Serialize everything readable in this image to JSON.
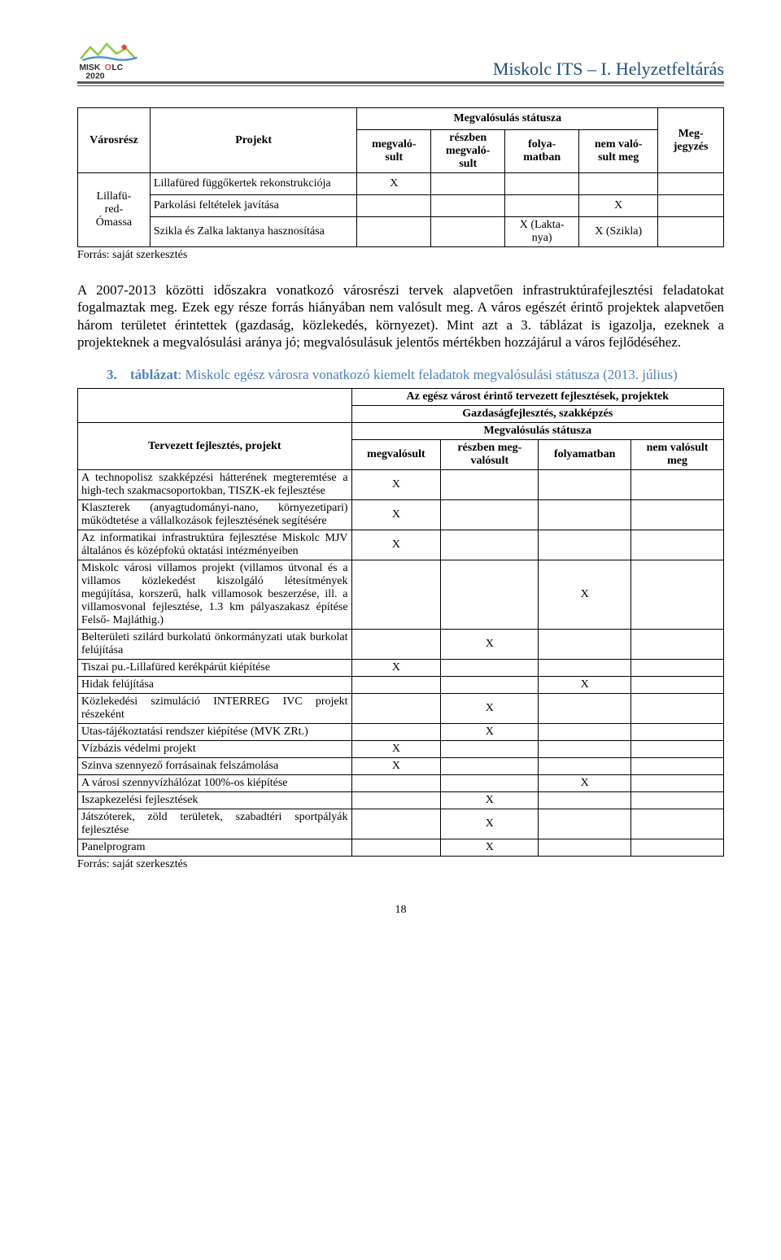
{
  "header": {
    "title": "Miskolc ITS – I. Helyzetfeltárás",
    "logo_top": "MISK",
    "logo_o": "O",
    "logo_end": "LC",
    "logo_year": "2020"
  },
  "colors": {
    "header_text": "#1f4e79",
    "caption_text": "#4f81bd",
    "rule": "#595959",
    "text": "#000000",
    "bg": "#ffffff",
    "logo_green": "#8cc63f",
    "logo_blue": "#4a90d9",
    "logo_red": "#e94b35",
    "logo_dark": "#2c2c2c"
  },
  "table1": {
    "head": {
      "c1": "Városrész",
      "c2": "Projekt",
      "span": "Megvalósulás státusza",
      "c3": "megvaló-\nsult",
      "c4": "részben\nmegvaló-\nsult",
      "c5": "folya-\nmatban",
      "c6": "nem való-\nsult meg",
      "c7": "Meg-\njegyzés"
    },
    "group": "Lillafü-\nred-\nÓmassa",
    "rows": [
      {
        "proj": "Lillafüred függőkertek rekonstrukciója",
        "c3": "X",
        "c4": "",
        "c5": "",
        "c6": "",
        "c7": ""
      },
      {
        "proj": "Parkolási feltételek javítása",
        "c3": "",
        "c4": "",
        "c5": "",
        "c6": "X",
        "c7": ""
      },
      {
        "proj": "Szikla és Zalka laktanya hasznosítása",
        "c3": "",
        "c4": "",
        "c5": "X (Lakta-\nnya)",
        "c6": "X (Szikla)",
        "c7": ""
      }
    ],
    "source": "Forrás: saját szerkesztés"
  },
  "paragraph": "A 2007-2013 közötti időszakra vonatkozó városrészi tervek alapvetően infrastruktúrafejlesztési feladatokat fogalmaztak meg. Ezek egy része forrás hiányában nem valósult meg. A város egészét érintő projektek alapvetően három területet érintettek (gazdaság, közlekedés, környezet). Mint azt a 3. táblázat is igazolja, ezeknek a projekteknek a megvalósulási aránya jó; megvalósulásuk jelentős mértékben hozzájárul a város fejlődéséhez.",
  "caption": {
    "num": "3.",
    "label": "táblázat",
    "rest": ": Miskolc egész városra vonatkozó kiemelt feladatok megvalósulási státusza (2013. július)"
  },
  "table2": {
    "title": "Az egész várost érintő tervezett fejlesztések, projektek",
    "subtitle": "Gazdaságfejlesztés, szakképzés",
    "head": {
      "c1": "Tervezett fejlesztés, projekt",
      "span": "Megvalósulás státusza",
      "c2": "megvalósult",
      "c3": "részben meg-\nvalósult",
      "c4": "folyamatban",
      "c5": "nem valósult\nmeg"
    },
    "rows": [
      {
        "p": "A technopolisz szakképzési hátterének megteremtése a high-tech szakmacsoportokban, TISZK-ek fejlesztése",
        "c2": "X",
        "c3": "",
        "c4": "",
        "c5": ""
      },
      {
        "p": "Klaszterek (anyagtudományi-nano, környezetipari) működtetése a vállalkozások fejlesztésének segítésére",
        "c2": "X",
        "c3": "",
        "c4": "",
        "c5": ""
      },
      {
        "p": "Az informatikai infrastruktúra fejlesztése Miskolc MJV általános és középfokú oktatási intézményeiben",
        "c2": "X",
        "c3": "",
        "c4": "",
        "c5": ""
      },
      {
        "p": "Miskolc városi villamos projekt (villamos útvonal és a villamos közlekedést kiszolgáló létesítmények megújítása, korszerű, halk villamosok beszerzése, ill. a villamosvonal fejlesztése, 1.3 km pályaszakasz építése Felső- Majláthig.)",
        "c2": "",
        "c3": "",
        "c4": "X",
        "c5": ""
      },
      {
        "p": "Belterületi szilárd burkolatú önkormányzati utak burkolat felújítása",
        "c2": "",
        "c3": "X",
        "c4": "",
        "c5": ""
      },
      {
        "p": "Tiszai pu.-Lillafüred kerékpárút kiépítése",
        "c2": "X",
        "c3": "",
        "c4": "",
        "c5": ""
      },
      {
        "p": "Hidak felújítása",
        "c2": "",
        "c3": "",
        "c4": "X",
        "c5": ""
      },
      {
        "p": "Közlekedési szimuláció INTERREG IVC projekt részeként",
        "c2": "",
        "c3": "X",
        "c4": "",
        "c5": ""
      },
      {
        "p": "Utas-tájékoztatási rendszer kiépítése (MVK ZRt.)",
        "c2": "",
        "c3": "X",
        "c4": "",
        "c5": ""
      },
      {
        "p": "Vízbázis védelmi projekt",
        "c2": "X",
        "c3": "",
        "c4": "",
        "c5": ""
      },
      {
        "p": "Szinva szennyező forrásainak felszámolása",
        "c2": "X",
        "c3": "",
        "c4": "",
        "c5": ""
      },
      {
        "p": "A városi szennyvízhálózat 100%-os kiépítése",
        "c2": "",
        "c3": "",
        "c4": "X",
        "c5": ""
      },
      {
        "p": "Iszapkezelési fejlesztések",
        "c2": "",
        "c3": "X",
        "c4": "",
        "c5": ""
      },
      {
        "p": "Játszóterek, zöld területek, szabadtéri sportpályák fejlesztése",
        "c2": "",
        "c3": "X",
        "c4": "",
        "c5": ""
      },
      {
        "p": "Panelprogram",
        "c2": "",
        "c3": "X",
        "c4": "",
        "c5": ""
      }
    ],
    "source": "Forrás: saját szerkesztés"
  },
  "page_number": "18"
}
